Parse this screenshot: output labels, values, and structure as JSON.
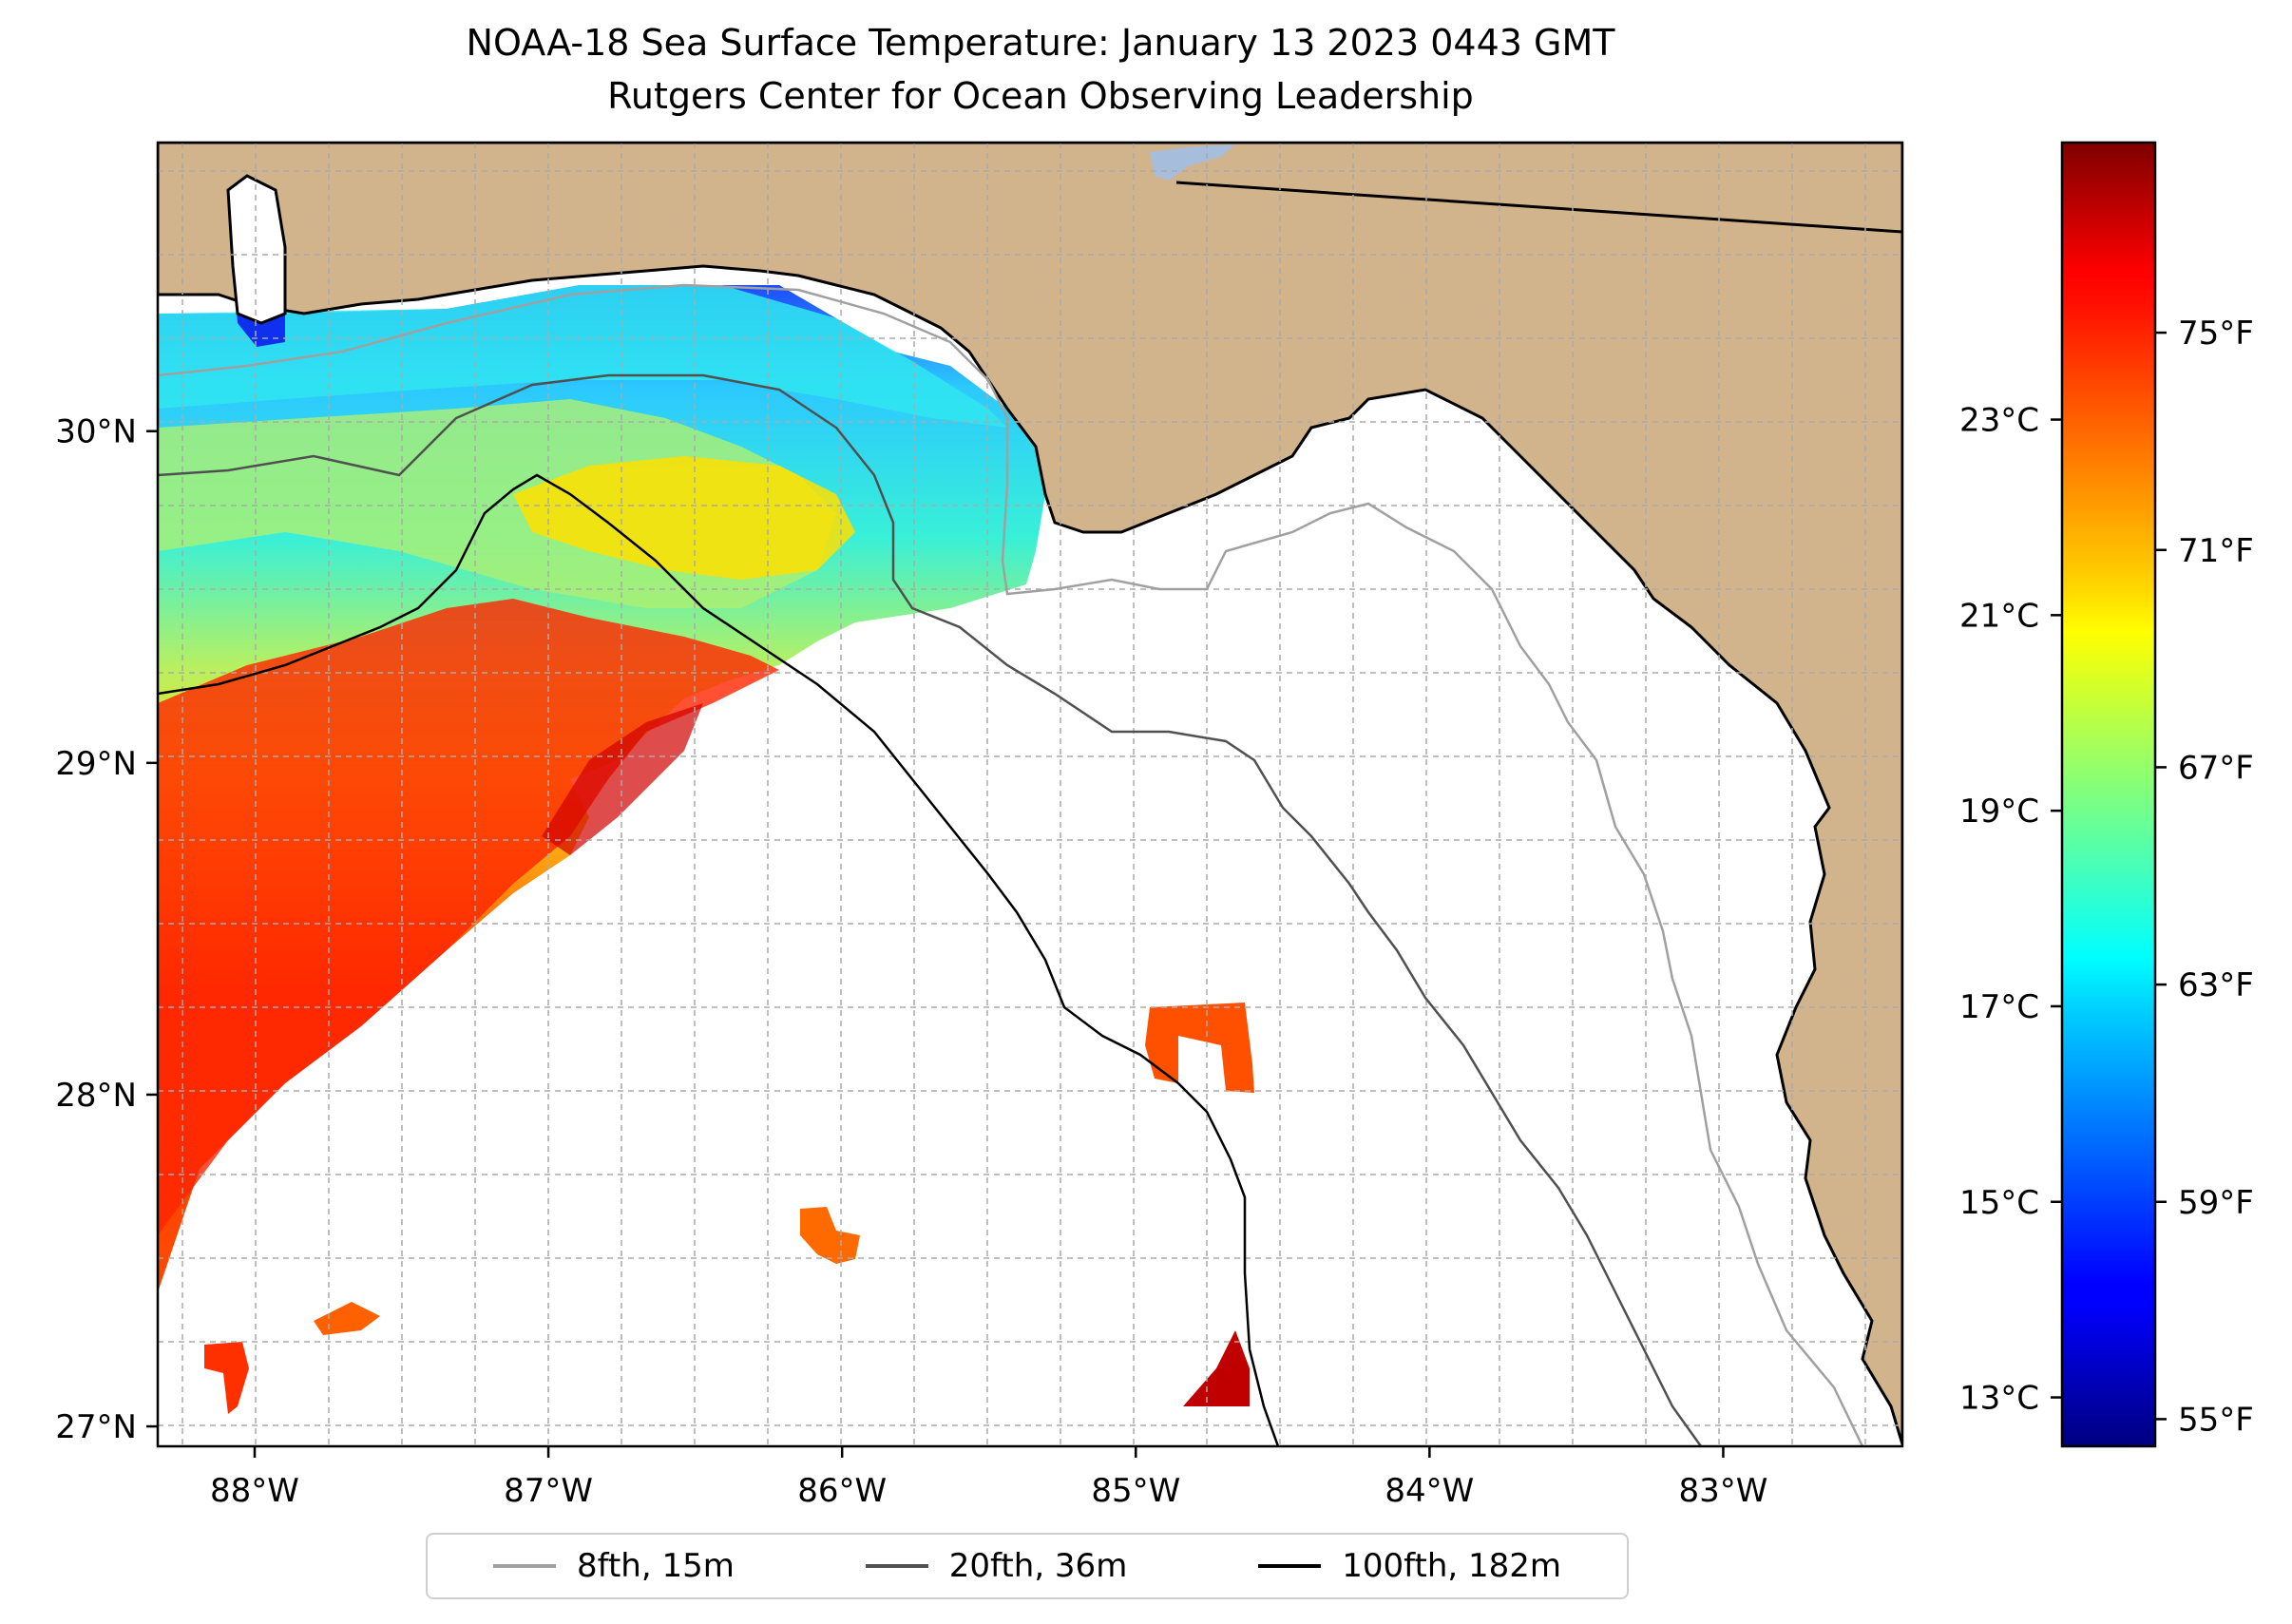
{
  "title": "NOAA-18 Sea Surface Temperature: January 13 2023 0443 GMT",
  "subtitle": "Rutgers Center for Ocean Observing Leadership",
  "map": {
    "lon_range": [
      -88.33,
      -82.39
    ],
    "lat_range": [
      26.94,
      30.87
    ],
    "lon_ticks": [
      "88°W",
      "87°W",
      "86°W",
      "85°W",
      "84°W",
      "83°W"
    ],
    "lat_ticks": [
      "27°N",
      "28°N",
      "29°N",
      "30°N"
    ],
    "land_color": "#d2b48c",
    "ocean_color": "#ffffff",
    "grid": true
  },
  "colorbar": {
    "colormap": "jet",
    "f_range": [
      54.5,
      78.5
    ],
    "c_ticks": [
      "13°C",
      "15°C",
      "17°C",
      "19°C",
      "21°C",
      "23°C"
    ],
    "c_values": [
      13,
      15,
      17,
      19,
      21,
      23
    ],
    "f_ticks": [
      "55°F",
      "59°F",
      "63°F",
      "67°F",
      "71°F",
      "75°F"
    ],
    "f_values": [
      55,
      59,
      63,
      67,
      71,
      75
    ]
  },
  "legend": [
    {
      "label": "8fth, 15m",
      "color": "#a0a0a0"
    },
    {
      "label": "20fth, 36m",
      "color": "#505050"
    },
    {
      "label": "100fth, 182m",
      "color": "#000000"
    }
  ],
  "sst_regions": [
    {
      "name": "open-gulf-warm-water",
      "value_f": 74
    },
    {
      "name": "loop-eddy-core",
      "value_f": 76
    },
    {
      "name": "shelf-mid-water",
      "value_f": 68
    },
    {
      "name": "nearshore-cool-water",
      "value_f": 64
    },
    {
      "name": "mobile-bay-water",
      "value_f": 58
    },
    {
      "name": "offshore-patch-central",
      "value_f": 73
    },
    {
      "name": "offshore-patch-south",
      "value_f": 73
    },
    {
      "name": "offshore-patch-southeast",
      "value_f": 77
    }
  ]
}
